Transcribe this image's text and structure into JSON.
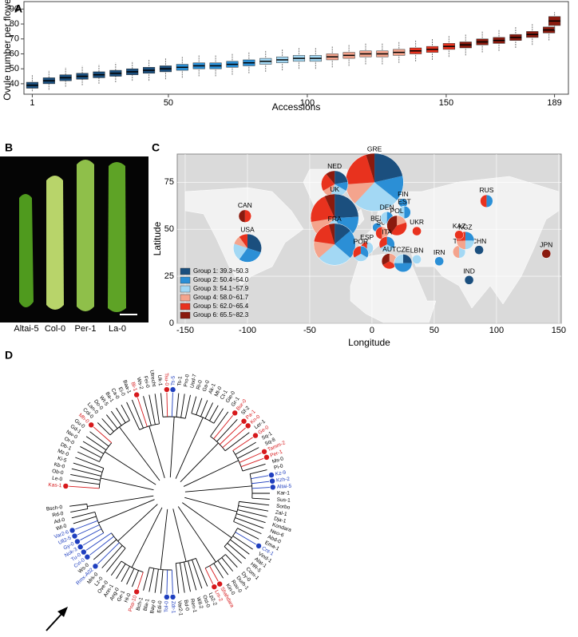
{
  "chart_data": [
    {
      "type": "box",
      "panel_label": "A",
      "ylabel": "Ovule number per flower",
      "xlabel": "Accessions",
      "x": [
        1,
        7,
        13,
        19,
        25,
        31,
        37,
        43,
        49,
        55,
        61,
        67,
        73,
        79,
        85,
        91,
        97,
        103,
        109,
        115,
        121,
        127,
        133,
        139,
        145,
        151,
        157,
        163,
        169,
        175,
        181,
        187,
        189
      ],
      "low": [
        35,
        36,
        38,
        39,
        40,
        41,
        42,
        42,
        43,
        44,
        45,
        45,
        46,
        47,
        48,
        49,
        50,
        50,
        51,
        52,
        53,
        53,
        54,
        55,
        56,
        58,
        59,
        61,
        62,
        64,
        66,
        69,
        76
      ],
      "q1": [
        37,
        40,
        42,
        43,
        44,
        45,
        46,
        47,
        48,
        49,
        50,
        50,
        51,
        52,
        53,
        54,
        55,
        55,
        56,
        57,
        58,
        58,
        59,
        60,
        61,
        63,
        64,
        66,
        67,
        69,
        71,
        74,
        79
      ],
      "median": [
        39,
        42,
        44,
        45,
        46,
        47,
        48,
        49,
        50,
        51,
        52,
        52,
        53,
        54,
        55,
        56,
        57,
        57,
        58,
        59,
        60,
        60,
        61,
        62,
        63,
        65,
        66,
        68,
        69,
        71,
        73,
        76,
        82
      ],
      "q3": [
        41,
        44,
        46,
        47,
        48,
        49,
        50,
        51,
        52,
        53,
        54,
        54,
        55,
        56,
        57,
        58,
        59,
        59,
        60,
        61,
        62,
        62,
        63,
        64,
        65,
        67,
        68,
        70,
        71,
        73,
        75,
        78,
        85
      ],
      "high": [
        46,
        49,
        51,
        52,
        53,
        54,
        55,
        56,
        57,
        58,
        59,
        59,
        60,
        61,
        62,
        63,
        64,
        64,
        65,
        66,
        67,
        67,
        68,
        69,
        70,
        72,
        73,
        75,
        76,
        78,
        80,
        83,
        88
      ],
      "xlim": [
        -2,
        194
      ],
      "ylim": [
        33,
        95
      ],
      "xticks": [
        1,
        50,
        100,
        150,
        189
      ],
      "yticks": [
        40,
        50,
        60,
        70,
        80,
        90
      ]
    },
    {
      "type": "pie-map",
      "panel_label": "C",
      "xlabel": "Longitude",
      "ylabel": "Latitude",
      "xlim": [
        -156.4,
        152
      ],
      "ylim": [
        0,
        90
      ],
      "xticks": [
        -150,
        -100,
        -50,
        0,
        50,
        100,
        150
      ],
      "yticks": [
        0,
        25,
        50,
        75
      ],
      "groups": [
        {
          "label": "Group 1: 39.3~50.3",
          "color": "#1b4f7e",
          "range": [
            39.3,
            50.3
          ]
        },
        {
          "label": "Group 2: 50.4~54.0",
          "color": "#2b8fd6",
          "range": [
            50.4,
            54.0
          ]
        },
        {
          "label": "Group 3: 54.1~57.9",
          "color": "#a3d8f4",
          "range": [
            54.1,
            57.9
          ]
        },
        {
          "label": "Group 4: 58.0~61.7",
          "color": "#f4a48d",
          "range": [
            58.0,
            61.7
          ]
        },
        {
          "label": "Group 5: 62.0~65.4",
          "color": "#e8321e",
          "range": [
            62.0,
            65.4
          ]
        },
        {
          "label": "Group 6: 65.5~82.3",
          "color": "#8a1a0e",
          "range": [
            65.5,
            82.3
          ]
        }
      ],
      "sites": [
        {
          "name": "GRE",
          "lon": 2,
          "lat": 75,
          "counts": [
            9,
            6,
            11,
            5,
            9,
            2
          ]
        },
        {
          "name": "NED",
          "lon": -30,
          "lat": 74,
          "counts": [
            2,
            1,
            2,
            1,
            2,
            1
          ]
        },
        {
          "name": "CAN",
          "lon": -102,
          "lat": 57,
          "counts": [
            0,
            0,
            0,
            0,
            1,
            1
          ]
        },
        {
          "name": "USA",
          "lon": -100,
          "lat": 40,
          "counts": [
            3,
            3,
            2,
            1,
            1,
            0
          ]
        },
        {
          "name": "UK",
          "lon": -30,
          "lat": 56,
          "counts": [
            7,
            5,
            6,
            3,
            6,
            2
          ]
        },
        {
          "name": "FRA",
          "lon": -30,
          "lat": 42,
          "counts": [
            3,
            5,
            6,
            3,
            4,
            1
          ]
        },
        {
          "name": "BEL",
          "lon": 4,
          "lat": 51,
          "counts": [
            0,
            1,
            0,
            0,
            0,
            0
          ]
        },
        {
          "name": "SUI",
          "lon": 8,
          "lat": 48,
          "counts": [
            0,
            0,
            0,
            1,
            1,
            0
          ]
        },
        {
          "name": "DEN",
          "lon": 12,
          "lat": 56,
          "counts": [
            0,
            1,
            1,
            0,
            0,
            0
          ]
        },
        {
          "name": "FIN",
          "lon": 25,
          "lat": 64,
          "counts": [
            0,
            1,
            0,
            0,
            0,
            0
          ]
        },
        {
          "name": "EST",
          "lon": 26,
          "lat": 59,
          "counts": [
            0,
            1,
            1,
            0,
            0,
            0
          ]
        },
        {
          "name": "POL",
          "lon": 20,
          "lat": 52,
          "counts": [
            0,
            0,
            0,
            1,
            2,
            2
          ]
        },
        {
          "name": "UKR",
          "lon": 36,
          "lat": 49,
          "counts": [
            0,
            0,
            0,
            0,
            1,
            0
          ]
        },
        {
          "name": "ESP",
          "lon": -4,
          "lat": 40,
          "counts": [
            0,
            0,
            1,
            0,
            1,
            0
          ]
        },
        {
          "name": "POR",
          "lon": -9,
          "lat": 37,
          "counts": [
            0,
            1,
            1,
            0,
            1,
            0
          ]
        },
        {
          "name": "ITA",
          "lon": 12,
          "lat": 42,
          "counts": [
            0,
            1,
            1,
            0,
            1,
            0
          ]
        },
        {
          "name": "AUT",
          "lon": 14,
          "lat": 33,
          "counts": [
            0,
            0,
            0,
            1,
            1,
            1
          ]
        },
        {
          "name": "CZE",
          "lon": 25,
          "lat": 32,
          "counts": [
            1,
            2,
            1,
            0,
            0,
            0
          ]
        },
        {
          "name": "LBN",
          "lon": 36,
          "lat": 34,
          "counts": [
            0,
            0,
            1,
            0,
            0,
            0
          ]
        },
        {
          "name": "IRN",
          "lon": 54,
          "lat": 33,
          "counts": [
            0,
            1,
            0,
            0,
            0,
            0
          ]
        },
        {
          "name": "IND",
          "lon": 78,
          "lat": 23,
          "counts": [
            1,
            0,
            0,
            0,
            0,
            0
          ]
        },
        {
          "name": "TJK",
          "lon": 70,
          "lat": 38,
          "counts": [
            0,
            0,
            1,
            1,
            0,
            0
          ]
        },
        {
          "name": "CHN",
          "lon": 86,
          "lat": 39,
          "counts": [
            1,
            0,
            0,
            0,
            0,
            0
          ]
        },
        {
          "name": "KGZ",
          "lon": 75,
          "lat": 44,
          "counts": [
            0,
            1,
            1,
            1,
            1,
            0
          ]
        },
        {
          "name": "KAZ",
          "lon": 70,
          "lat": 47,
          "counts": [
            0,
            0,
            0,
            0,
            1,
            0
          ]
        },
        {
          "name": "RUS",
          "lon": 92,
          "lat": 65,
          "counts": [
            0,
            1,
            0,
            0,
            1,
            0
          ]
        },
        {
          "name": "JPN",
          "lon": 140,
          "lat": 37,
          "counts": [
            0,
            0,
            0,
            0,
            0,
            1
          ]
        }
      ]
    }
  ],
  "photo": {
    "panel_label": "B",
    "labels": [
      "Altai-5",
      "Col-0",
      "Per-1",
      "La-0"
    ]
  },
  "tree": {
    "panel_label": "D",
    "leaves": [
      {
        "name": "Kas-1",
        "color": "#d7191c"
      },
      {
        "name": "Le-0",
        "color": "#000000"
      },
      {
        "name": "Ob-0",
        "color": "#000000"
      },
      {
        "name": "Kb-0",
        "color": "#000000"
      },
      {
        "name": "Ki-5",
        "color": "#000000"
      },
      {
        "name": "Mz-0",
        "color": "#000000"
      },
      {
        "name": "Db-1",
        "color": "#000000"
      },
      {
        "name": "Or-0",
        "color": "#000000"
      },
      {
        "name": "Nw-0",
        "color": "#000000"
      },
      {
        "name": "Gd-1",
        "color": "#000000"
      },
      {
        "name": "Gu-0",
        "color": "#000000"
      },
      {
        "name": "Mh-0",
        "color": "#d7191c"
      },
      {
        "name": "Col-0",
        "color": "#000000"
      },
      {
        "name": "Lan-0",
        "color": "#000000"
      },
      {
        "name": "Do-0",
        "color": "#000000"
      },
      {
        "name": "Wt-5",
        "color": "#000000"
      },
      {
        "name": "Ba-1",
        "color": "#000000"
      },
      {
        "name": "Ca-0",
        "color": "#000000"
      },
      {
        "name": "Ei-0",
        "color": "#000000"
      },
      {
        "name": "Baa-1",
        "color": "#000000"
      },
      {
        "name": "Bl-1",
        "color": "#d7191c"
      },
      {
        "name": "Ws-2",
        "color": "#000000"
      },
      {
        "name": "Fei-0",
        "color": "#000000"
      },
      {
        "name": "Utrecht",
        "color": "#000000"
      },
      {
        "name": "Uk-1",
        "color": "#000000"
      },
      {
        "name": "Tsu-0",
        "color": "#d7191c"
      },
      {
        "name": "Ts-5",
        "color": "#1f3fbf"
      },
      {
        "name": "Ts-1",
        "color": "#000000"
      },
      {
        "name": "Pro-0",
        "color": "#000000"
      },
      {
        "name": "Uod-7",
        "color": "#000000"
      },
      {
        "name": "Ri-0",
        "color": "#000000"
      },
      {
        "name": "Ga-0",
        "color": "#000000"
      },
      {
        "name": "Ak-1",
        "color": "#000000"
      },
      {
        "name": "Mt-0",
        "color": "#000000"
      },
      {
        "name": "Ct-1",
        "color": "#000000"
      },
      {
        "name": "Gie-0",
        "color": "#000000"
      },
      {
        "name": "Gr-1",
        "color": "#000000"
      },
      {
        "name": "Bur-0",
        "color": "#d7191c"
      },
      {
        "name": "Sf-2",
        "color": "#000000"
      },
      {
        "name": "Pa-1",
        "color": "#d7191c"
      },
      {
        "name": "Kn-0",
        "color": "#d7191c"
      },
      {
        "name": "Ler-1",
        "color": "#000000"
      },
      {
        "name": "Ge-0",
        "color": "#d7191c"
      },
      {
        "name": "Sq-1",
        "color": "#000000"
      },
      {
        "name": "Sq-8",
        "color": "#000000"
      },
      {
        "name": "Tamm-2",
        "color": "#d7191c"
      },
      {
        "name": "Per-1",
        "color": "#d7191c"
      },
      {
        "name": "Ms-0",
        "color": "#000000"
      },
      {
        "name": "Pi-0",
        "color": "#000000"
      },
      {
        "name": "Kz-9",
        "color": "#1f3fbf"
      },
      {
        "name": "Kzh-2",
        "color": "#1f3fbf"
      },
      {
        "name": "Altai-5",
        "color": "#1f3fbf"
      },
      {
        "name": "Kar-1",
        "color": "#000000"
      },
      {
        "name": "Sus-1",
        "color": "#000000"
      },
      {
        "name": "Sorbo",
        "color": "#000000"
      },
      {
        "name": "Zal-1",
        "color": "#000000"
      },
      {
        "name": "Dja-1",
        "color": "#000000"
      },
      {
        "name": "Kondara",
        "color": "#000000"
      },
      {
        "name": "Neo-6",
        "color": "#000000"
      },
      {
        "name": "Abd-0",
        "color": "#000000"
      },
      {
        "name": "Ema-1",
        "color": "#000000"
      },
      {
        "name": "Cnt-1",
        "color": "#1f3fbf"
      },
      {
        "name": "Vind-1",
        "color": "#000000"
      },
      {
        "name": "Alat-1",
        "color": "#000000"
      },
      {
        "name": "HR-5",
        "color": "#000000"
      },
      {
        "name": "Com-1",
        "color": "#000000"
      },
      {
        "name": "Dy-0",
        "color": "#000000"
      },
      {
        "name": "Durh-1",
        "color": "#000000"
      },
      {
        "name": "Rou-0",
        "color": "#000000"
      },
      {
        "name": "Kin-0",
        "color": "#000000"
      },
      {
        "name": "Shahdara",
        "color": "#d7191c"
      },
      {
        "name": "Lm-2",
        "color": "#d7191c"
      },
      {
        "name": "Lp2-2",
        "color": "#000000"
      },
      {
        "name": "Ost-0",
        "color": "#000000"
      },
      {
        "name": "Wil-2",
        "color": "#000000"
      },
      {
        "name": "Ren-1",
        "color": "#000000"
      },
      {
        "name": "Bd-0",
        "color": "#000000"
      },
      {
        "name": "Var2-1",
        "color": "#000000"
      },
      {
        "name": "Zdr-1",
        "color": "#1f3fbf"
      },
      {
        "name": "Tol-0",
        "color": "#1f3fbf"
      },
      {
        "name": "Edi-0",
        "color": "#000000"
      },
      {
        "name": "Bay-0",
        "color": "#000000"
      },
      {
        "name": "Bla-1",
        "color": "#000000"
      },
      {
        "name": "Bch-1",
        "color": "#000000"
      },
      {
        "name": "Pna-10",
        "color": "#d7191c"
      },
      {
        "name": "Hi-0",
        "color": "#000000"
      },
      {
        "name": "Ge-1",
        "color": "#000000"
      },
      {
        "name": "Ang-0",
        "color": "#000000"
      },
      {
        "name": "Ann-1",
        "color": "#000000"
      },
      {
        "name": "Ove-0",
        "color": "#000000"
      },
      {
        "name": "Lz-0",
        "color": "#000000"
      },
      {
        "name": "Mrk-0",
        "color": "#000000"
      },
      {
        "name": "Rmx-A02",
        "color": "#1f3fbf"
      },
      {
        "name": "Ws-0",
        "color": "#000000"
      },
      {
        "name": "Cvi-0",
        "color": "#1f3fbf"
      },
      {
        "name": "Tu-0",
        "color": "#1f3fbf"
      },
      {
        "name": "Nok-3",
        "color": "#1f3fbf"
      },
      {
        "name": "Gy-0",
        "color": "#1f3fbf"
      },
      {
        "name": "Ull2-5",
        "color": "#1f3fbf"
      },
      {
        "name": "Var2-6",
        "color": "#1f3fbf"
      },
      {
        "name": "Wl-0",
        "color": "#000000"
      },
      {
        "name": "Ad-0",
        "color": "#000000"
      },
      {
        "name": "Rd-0",
        "color": "#000000"
      },
      {
        "name": "Bsch-0",
        "color": "#000000"
      }
    ]
  }
}
